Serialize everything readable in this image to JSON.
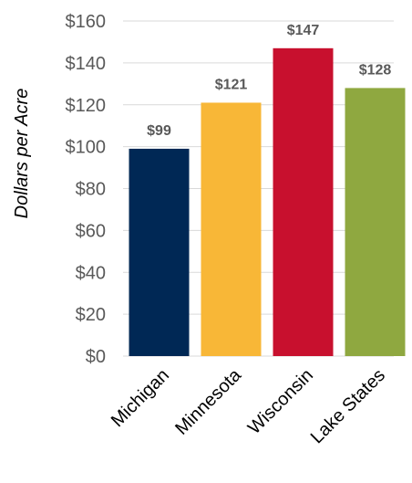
{
  "chart_data": {
    "type": "bar",
    "title": "",
    "xlabel": "",
    "ylabel": "Dollars per Acre",
    "categories": [
      "Michigan",
      "Minnesota",
      "Wisconsin",
      "Lake States"
    ],
    "values": [
      99,
      121,
      147,
      128
    ],
    "data_labels": [
      "$99",
      "$121",
      "$147",
      "$128"
    ],
    "colors": [
      "#002855",
      "#f8b737",
      "#c8102e",
      "#8fa840"
    ],
    "ylim": [
      0,
      160
    ],
    "y_ticks": [
      0,
      20,
      40,
      60,
      80,
      100,
      120,
      140,
      160
    ],
    "y_tick_labels": [
      "$0",
      "$20",
      "$40",
      "$60",
      "$80",
      "$100",
      "$120",
      "$140",
      "$160"
    ],
    "grid": true,
    "legend": "none"
  }
}
